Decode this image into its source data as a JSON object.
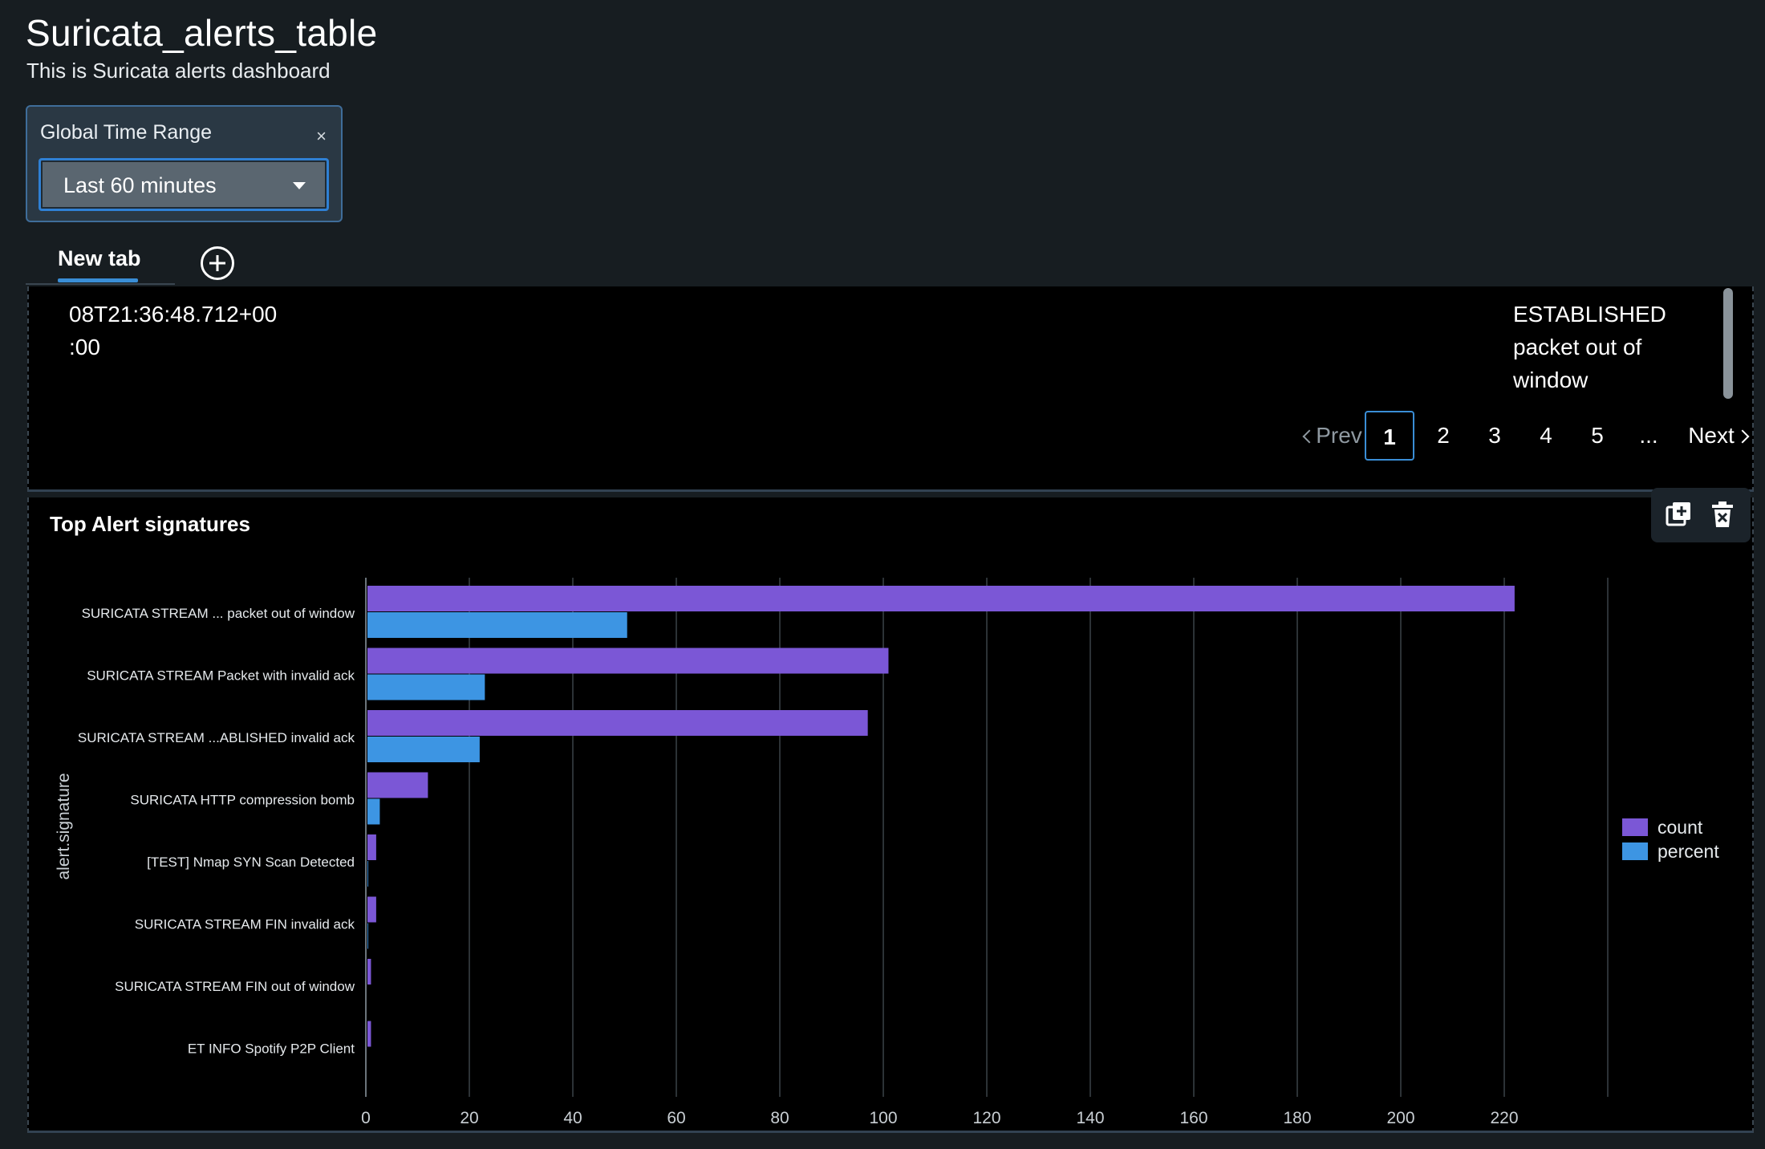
{
  "dashboard": {
    "title": "Suricata_alerts_table",
    "description": "This is Suricata alerts dashboard"
  },
  "time_range": {
    "label": "Global Time Range",
    "close_symbol": "×",
    "value": "Last 60 minutes"
  },
  "tabs": {
    "items": [
      {
        "label": "New tab"
      }
    ],
    "add_icon": "plus-circle-icon"
  },
  "table": {
    "timestamp_line1": "08T21:36:48.712+00",
    "timestamp_line2": ":00",
    "signature_line1": "ESTABLISHED",
    "signature_line2": "packet out of",
    "signature_line3": "window",
    "pagination": {
      "prev": "Prev",
      "current": "1",
      "pages": [
        "2",
        "3",
        "4",
        "5"
      ],
      "ellipsis": "...",
      "next": "Next"
    }
  },
  "chart_panel": {
    "title": "Top Alert signatures",
    "actions": [
      "clone-icon",
      "delete-icon"
    ]
  },
  "chart_data": {
    "type": "bar",
    "orientation": "horizontal",
    "ylabel": "alert.signature",
    "categories": [
      "SURICATA STREAM ... packet out of window",
      "SURICATA STREAM Packet with invalid ack",
      "SURICATA STREAM ...ABLISHED invalid ack",
      "SURICATA HTTP compression bomb",
      "[TEST] Nmap SYN Scan Detected",
      "SURICATA STREAM FIN invalid ack",
      "SURICATA STREAM FIN out of window",
      "ET INFO Spotify P2P Client"
    ],
    "series": [
      {
        "name": "count",
        "color": "#7b57d6",
        "values": [
          222,
          101,
          97,
          12,
          2,
          2,
          1,
          1
        ]
      },
      {
        "name": "percent",
        "color": "#3d95e3",
        "values": [
          50.5,
          23,
          22,
          2.7,
          0.45,
          0.45,
          0.23,
          0.23
        ]
      }
    ],
    "xlim": [
      0,
      240
    ],
    "xticks": [
      0,
      20,
      40,
      60,
      80,
      100,
      120,
      140,
      160,
      180,
      200,
      220
    ],
    "grid": true,
    "legend_position": "right"
  }
}
